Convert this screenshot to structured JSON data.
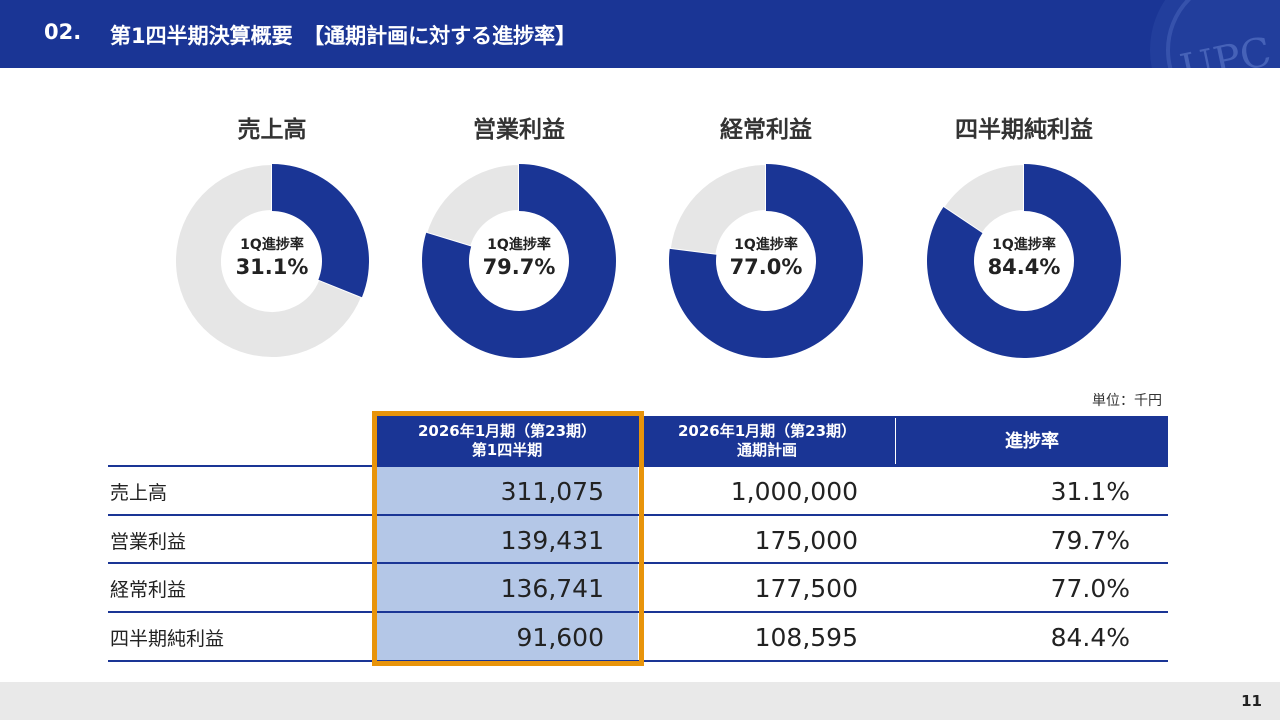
{
  "header": {
    "section_number": "02.",
    "title": "第1四半期決算概要　【通期計画に対する進捗率】",
    "logo_text": "UPC"
  },
  "colors": {
    "brand_blue": "#1a3595",
    "donut_remainder": "#e6e6e6",
    "highlight_fill": "#b4c7e7",
    "highlight_border": "#e8940a"
  },
  "chart_data": {
    "type": "pie",
    "center_label": "1Q進捗率",
    "charts": [
      {
        "title": "売上高",
        "value": 31.1,
        "value_label": "31.1%"
      },
      {
        "title": "営業利益",
        "value": 79.7,
        "value_label": "79.7%"
      },
      {
        "title": "経常利益",
        "value": 77.0,
        "value_label": "77.0%"
      },
      {
        "title": "四半期純利益",
        "value": 84.4,
        "value_label": "84.4%"
      }
    ]
  },
  "table": {
    "unit_label": "単位：千円",
    "headers": [
      {
        "line1": "2026年1月期（第23期）",
        "line2": "第1四半期"
      },
      {
        "line1": "2026年1月期（第23期）",
        "line2": "通期計画"
      },
      {
        "line1": "進捗率",
        "line2": ""
      }
    ],
    "rows": [
      {
        "label": "売上高",
        "q1": "311,075",
        "plan": "1,000,000",
        "rate": "31.1%"
      },
      {
        "label": "営業利益",
        "q1": "139,431",
        "plan": "175,000",
        "rate": "79.7%"
      },
      {
        "label": "経常利益",
        "q1": "136,741",
        "plan": "177,500",
        "rate": "77.0%"
      },
      {
        "label": "四半期純利益",
        "q1": "91,600",
        "plan": "108,595",
        "rate": "84.4%"
      }
    ]
  },
  "footer": {
    "page_number": "11"
  }
}
